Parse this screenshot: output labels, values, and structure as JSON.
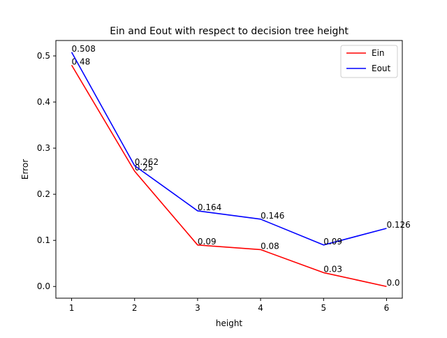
{
  "chart_data": {
    "type": "line",
    "title": "Ein and Eout with respect to decision tree height",
    "xlabel": "height",
    "ylabel": "Error",
    "x": [
      1,
      2,
      3,
      4,
      5,
      6
    ],
    "series": [
      {
        "name": "Ein",
        "color": "#ff0000",
        "values": [
          0.48,
          0.25,
          0.09,
          0.08,
          0.03,
          0.0
        ],
        "labels": [
          "0.48",
          "0.25",
          "0.09",
          "0.08",
          "0.03",
          "0.0"
        ]
      },
      {
        "name": "Eout",
        "color": "#0000ff",
        "values": [
          0.508,
          0.262,
          0.164,
          0.146,
          0.09,
          0.126
        ],
        "labels": [
          "0.508",
          "0.262",
          "0.164",
          "0.146",
          "0.09",
          "0.126"
        ]
      }
    ],
    "xticks": [
      "1",
      "2",
      "3",
      "4",
      "5",
      "6"
    ],
    "yticks": [
      "0.0",
      "0.1",
      "0.2",
      "0.3",
      "0.4",
      "0.5"
    ],
    "ytick_values": [
      0.0,
      0.1,
      0.2,
      0.3,
      0.4,
      0.5
    ],
    "xlim": [
      0.75,
      6.25
    ],
    "ylim": [
      -0.0254,
      0.5334
    ],
    "grid": false,
    "legend_position": "top-right"
  }
}
